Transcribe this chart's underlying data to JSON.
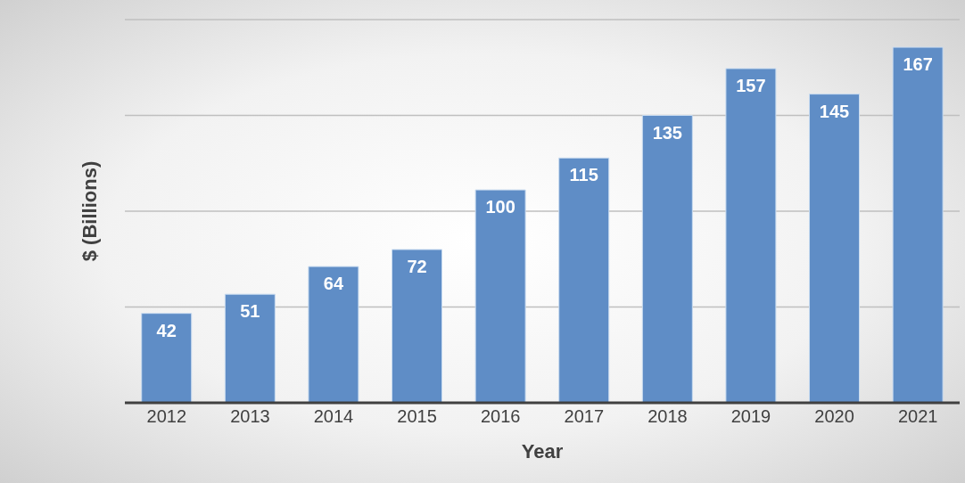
{
  "chart_data": {
    "type": "bar",
    "xlabel": "Year",
    "ylabel": "$ (Billions)",
    "categories": [
      "2012",
      "2013",
      "2014",
      "2015",
      "2016",
      "2017",
      "2018",
      "2019",
      "2020",
      "2021"
    ],
    "values": [
      42,
      51,
      64,
      72,
      100,
      115,
      135,
      157,
      145,
      167
    ],
    "color": "#5f8dc6",
    "ylim": [
      0,
      180
    ],
    "yticks": [
      {
        "value": 0,
        "label": null
      },
      {
        "value": 45,
        "label": null
      },
      {
        "value": 90,
        "label": null
      },
      {
        "value": 135,
        "label": null
      },
      {
        "value": 180,
        "label": null
      }
    ],
    "grid": "y",
    "data_labels": true,
    "tick_labels": "x"
  }
}
